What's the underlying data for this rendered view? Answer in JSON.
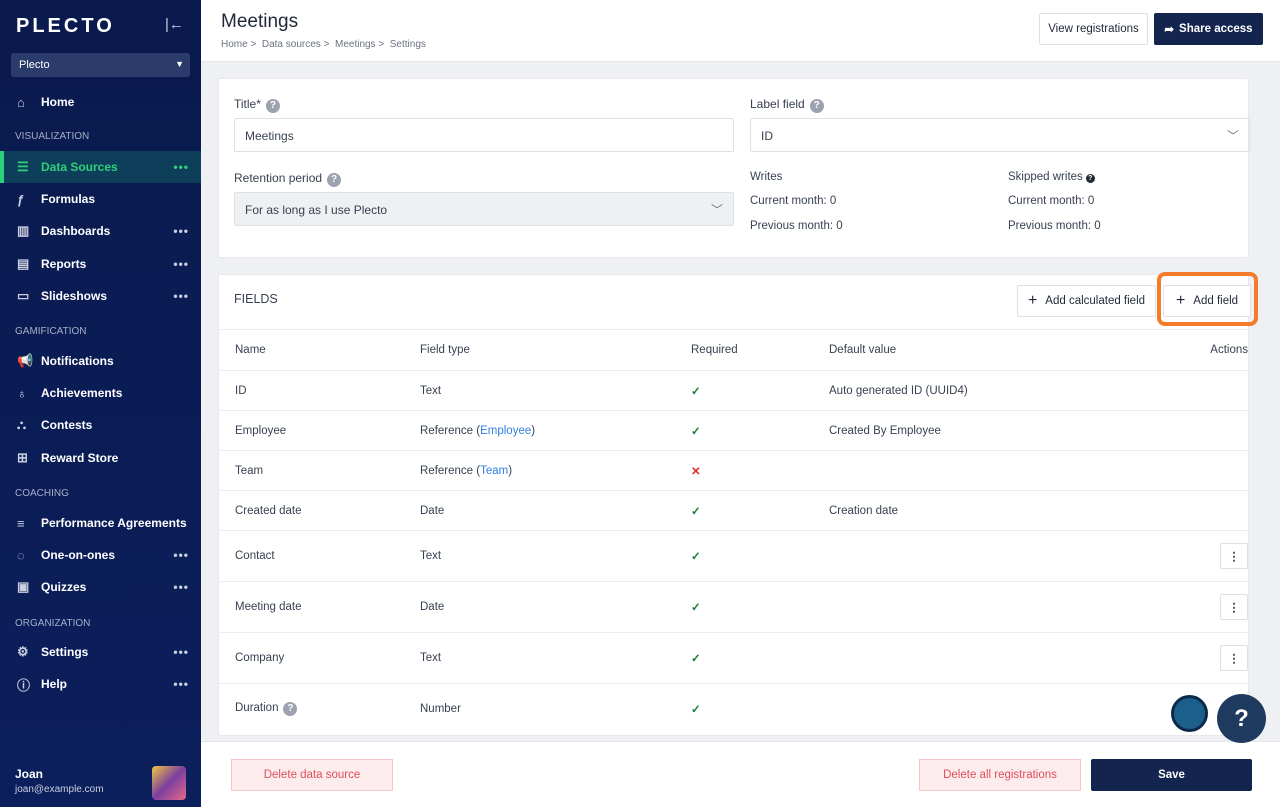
{
  "sidebar": {
    "logo": "PLECTO",
    "org": "Plecto",
    "sections": {
      "visualization": "VISUALIZATION",
      "gamification": "GAMIFICATION",
      "coaching": "COACHING",
      "organization": "ORGANIZATION"
    },
    "items": [
      {
        "label": "Home",
        "icon": "home-icon"
      },
      {
        "label": "Data Sources",
        "icon": "database-icon"
      },
      {
        "label": "Formulas",
        "icon": "function-icon"
      },
      {
        "label": "Dashboards",
        "icon": "chart-icon"
      },
      {
        "label": "Reports",
        "icon": "report-icon"
      },
      {
        "label": "Slideshows",
        "icon": "monitor-icon"
      },
      {
        "label": "Notifications",
        "icon": "megaphone-icon"
      },
      {
        "label": "Achievements",
        "icon": "medal-icon"
      },
      {
        "label": "Contests",
        "icon": "podium-icon"
      },
      {
        "label": "Reward Store",
        "icon": "gift-icon"
      },
      {
        "label": "Performance Agreements",
        "icon": "agreement-icon"
      },
      {
        "label": "One-on-ones",
        "icon": "chat-icon"
      },
      {
        "label": "Quizzes",
        "icon": "quiz-icon"
      },
      {
        "label": "Settings",
        "icon": "gear-icon"
      },
      {
        "label": "Help",
        "icon": "help-icon"
      }
    ],
    "user": {
      "name": "Joan",
      "email": "joan@example.com"
    }
  },
  "header": {
    "title": "Meetings",
    "breadcrumb": [
      "Home",
      "Data sources",
      "Meetings",
      "Settings"
    ],
    "view_registrations": "View registrations",
    "share_access": "Share access"
  },
  "settings": {
    "title_label": "Title*",
    "title_value": "Meetings",
    "label_field_label": "Label field",
    "label_field_value": "ID",
    "retention_label": "Retention period",
    "retention_value": "For as long as I use Plecto",
    "writes": {
      "label": "Writes",
      "current": "Current month: 0",
      "previous": "Previous month: 0"
    },
    "skipped": {
      "label": "Skipped writes",
      "current": "Current month: 0",
      "previous": "Previous month: 0"
    }
  },
  "fields": {
    "title": "FIELDS",
    "add_calculated": "Add calculated field",
    "add_field": "Add field",
    "columns": [
      "Name",
      "Field type",
      "Required",
      "Default value",
      "Actions"
    ],
    "rows": [
      {
        "name": "ID",
        "type": "Text",
        "ref": "",
        "required": "✓",
        "default": "Auto generated ID (UUID4)",
        "actions": false
      },
      {
        "name": "Employee",
        "type": "Reference",
        "ref": "Employee",
        "required": "✓",
        "default": "Created By Employee",
        "actions": false
      },
      {
        "name": "Team",
        "type": "Reference",
        "ref": "Team",
        "required": "✕",
        "default": "",
        "actions": false
      },
      {
        "name": "Created date",
        "type": "Date",
        "ref": "",
        "required": "✓",
        "default": "Creation date",
        "actions": false
      },
      {
        "name": "Contact",
        "type": "Text",
        "ref": "",
        "required": "✓",
        "default": "",
        "actions": true
      },
      {
        "name": "Meeting date",
        "type": "Date",
        "ref": "",
        "required": "✓",
        "default": "",
        "actions": true
      },
      {
        "name": "Company",
        "type": "Text",
        "ref": "",
        "required": "✓",
        "default": "",
        "actions": true
      },
      {
        "name": "Duration",
        "type": "Number",
        "ref": "",
        "required": "✓",
        "default": "",
        "actions": false
      }
    ]
  },
  "footer": {
    "delete_source": "Delete data source",
    "delete_all": "Delete all registrations",
    "save": "Save"
  },
  "help": "?"
}
